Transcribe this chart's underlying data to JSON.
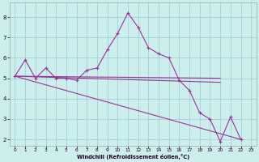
{
  "xlabel": "Windchill (Refroidissement éolien,°C)",
  "background_color": "#cceeed",
  "line_color": "#993399",
  "grid_color": "#99cccc",
  "xlim": [
    -0.5,
    23.5
  ],
  "ylim": [
    1.7,
    8.7
  ],
  "xticks": [
    0,
    1,
    2,
    3,
    4,
    5,
    6,
    7,
    8,
    9,
    10,
    11,
    12,
    13,
    14,
    15,
    16,
    17,
    18,
    19,
    20,
    21,
    22,
    23
  ],
  "yticks": [
    2,
    3,
    4,
    5,
    6,
    7,
    8
  ],
  "main_series": {
    "x": [
      0,
      1,
      2,
      3,
      4,
      5,
      6,
      7,
      8,
      9,
      10,
      11,
      12,
      13,
      14,
      15,
      16,
      17,
      18,
      19,
      20,
      21,
      22
    ],
    "y": [
      5.1,
      5.9,
      5.0,
      5.5,
      5.0,
      5.0,
      4.9,
      5.4,
      5.5,
      6.4,
      7.2,
      8.2,
      7.5,
      6.5,
      6.2,
      6.0,
      4.9,
      4.4,
      3.3,
      3.0,
      1.9,
      3.1,
      2.0
    ]
  },
  "ref_lines": [
    {
      "x": [
        0,
        20
      ],
      "y": [
        5.1,
        5.0
      ]
    },
    {
      "x": [
        0,
        20
      ],
      "y": [
        5.1,
        4.8
      ]
    },
    {
      "x": [
        0,
        22
      ],
      "y": [
        5.1,
        2.0
      ]
    }
  ]
}
